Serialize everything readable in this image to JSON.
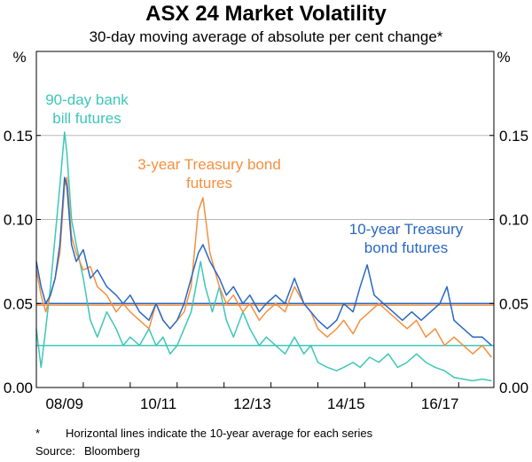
{
  "chart_data": {
    "type": "line",
    "title": "ASX 24 Market Volatility",
    "subtitle": "30-day moving average of absolute per cent change*",
    "ylabel_left": "%",
    "ylabel_right": "%",
    "ylim": [
      0,
      0.2
    ],
    "yticks": [
      "0.00",
      "0.05",
      "0.10",
      "0.15"
    ],
    "xlim": [
      2008.0,
      2017.75
    ],
    "xticks": [
      {
        "label": "08/09",
        "pos": 2008.6
      },
      {
        "label": "10/11",
        "pos": 2010.6
      },
      {
        "label": "12/13",
        "pos": 2012.6
      },
      {
        "label": "14/15",
        "pos": 2014.6
      },
      {
        "label": "16/17",
        "pos": 2016.6
      }
    ],
    "grid": true,
    "series": [
      {
        "name": "90-day bank bill futures",
        "label": [
          "90-day bank",
          "bill futures"
        ],
        "color": "#3ec6b8",
        "average": 0.025,
        "points": [
          [
            2008.0,
            0.035
          ],
          [
            2008.1,
            0.012
          ],
          [
            2008.2,
            0.035
          ],
          [
            2008.3,
            0.06
          ],
          [
            2008.4,
            0.09
          ],
          [
            2008.5,
            0.12
          ],
          [
            2008.6,
            0.152
          ],
          [
            2008.65,
            0.14
          ],
          [
            2008.75,
            0.1
          ],
          [
            2008.85,
            0.085
          ],
          [
            2009.0,
            0.065
          ],
          [
            2009.15,
            0.04
          ],
          [
            2009.3,
            0.03
          ],
          [
            2009.5,
            0.045
          ],
          [
            2009.7,
            0.035
          ],
          [
            2009.85,
            0.025
          ],
          [
            2010.0,
            0.03
          ],
          [
            2010.2,
            0.025
          ],
          [
            2010.4,
            0.035
          ],
          [
            2010.55,
            0.025
          ],
          [
            2010.7,
            0.03
          ],
          [
            2010.85,
            0.02
          ],
          [
            2011.0,
            0.025
          ],
          [
            2011.15,
            0.035
          ],
          [
            2011.3,
            0.045
          ],
          [
            2011.5,
            0.075
          ],
          [
            2011.6,
            0.06
          ],
          [
            2011.75,
            0.045
          ],
          [
            2011.9,
            0.06
          ],
          [
            2012.05,
            0.04
          ],
          [
            2012.2,
            0.03
          ],
          [
            2012.4,
            0.045
          ],
          [
            2012.55,
            0.035
          ],
          [
            2012.75,
            0.025
          ],
          [
            2012.9,
            0.03
          ],
          [
            2013.1,
            0.025
          ],
          [
            2013.3,
            0.02
          ],
          [
            2013.5,
            0.03
          ],
          [
            2013.7,
            0.02
          ],
          [
            2013.85,
            0.025
          ],
          [
            2014.0,
            0.015
          ],
          [
            2014.2,
            0.012
          ],
          [
            2014.4,
            0.01
          ],
          [
            2014.55,
            0.012
          ],
          [
            2014.75,
            0.015
          ],
          [
            2014.9,
            0.012
          ],
          [
            2015.1,
            0.018
          ],
          [
            2015.3,
            0.015
          ],
          [
            2015.5,
            0.02
          ],
          [
            2015.7,
            0.012
          ],
          [
            2015.9,
            0.015
          ],
          [
            2016.1,
            0.02
          ],
          [
            2016.3,
            0.015
          ],
          [
            2016.5,
            0.012
          ],
          [
            2016.7,
            0.01
          ],
          [
            2016.9,
            0.006
          ],
          [
            2017.1,
            0.005
          ],
          [
            2017.3,
            0.004
          ],
          [
            2017.5,
            0.005
          ],
          [
            2017.7,
            0.004
          ]
        ]
      },
      {
        "name": "3-year Treasury bond futures",
        "label": [
          "3-year Treasury bond",
          "futures"
        ],
        "color": "#f4903f",
        "average": 0.049,
        "points": [
          [
            2008.0,
            0.07
          ],
          [
            2008.1,
            0.055
          ],
          [
            2008.2,
            0.045
          ],
          [
            2008.3,
            0.055
          ],
          [
            2008.4,
            0.065
          ],
          [
            2008.5,
            0.08
          ],
          [
            2008.6,
            0.12
          ],
          [
            2008.65,
            0.125
          ],
          [
            2008.75,
            0.09
          ],
          [
            2008.85,
            0.08
          ],
          [
            2009.0,
            0.07
          ],
          [
            2009.15,
            0.072
          ],
          [
            2009.3,
            0.06
          ],
          [
            2009.5,
            0.055
          ],
          [
            2009.7,
            0.045
          ],
          [
            2009.85,
            0.05
          ],
          [
            2010.0,
            0.045
          ],
          [
            2010.2,
            0.04
          ],
          [
            2010.4,
            0.035
          ],
          [
            2010.55,
            0.05
          ],
          [
            2010.7,
            0.04
          ],
          [
            2010.85,
            0.035
          ],
          [
            2011.0,
            0.04
          ],
          [
            2011.15,
            0.045
          ],
          [
            2011.3,
            0.06
          ],
          [
            2011.45,
            0.105
          ],
          [
            2011.55,
            0.113
          ],
          [
            2011.7,
            0.08
          ],
          [
            2011.9,
            0.06
          ],
          [
            2012.05,
            0.05
          ],
          [
            2012.2,
            0.055
          ],
          [
            2012.4,
            0.045
          ],
          [
            2012.55,
            0.05
          ],
          [
            2012.75,
            0.04
          ],
          [
            2012.9,
            0.045
          ],
          [
            2013.1,
            0.05
          ],
          [
            2013.3,
            0.045
          ],
          [
            2013.5,
            0.06
          ],
          [
            2013.7,
            0.05
          ],
          [
            2013.85,
            0.045
          ],
          [
            2014.0,
            0.035
          ],
          [
            2014.2,
            0.03
          ],
          [
            2014.4,
            0.035
          ],
          [
            2014.55,
            0.04
          ],
          [
            2014.75,
            0.032
          ],
          [
            2014.9,
            0.04
          ],
          [
            2015.1,
            0.045
          ],
          [
            2015.3,
            0.05
          ],
          [
            2015.5,
            0.045
          ],
          [
            2015.7,
            0.04
          ],
          [
            2015.9,
            0.035
          ],
          [
            2016.1,
            0.04
          ],
          [
            2016.3,
            0.03
          ],
          [
            2016.5,
            0.035
          ],
          [
            2016.7,
            0.025
          ],
          [
            2016.9,
            0.03
          ],
          [
            2017.1,
            0.025
          ],
          [
            2017.3,
            0.02
          ],
          [
            2017.5,
            0.025
          ],
          [
            2017.7,
            0.018
          ]
        ]
      },
      {
        "name": "10-year Treasury bond futures",
        "label": [
          "10-year Treasury",
          "bond futures"
        ],
        "color": "#2a68c2",
        "average": 0.05,
        "points": [
          [
            2008.0,
            0.075
          ],
          [
            2008.1,
            0.06
          ],
          [
            2008.2,
            0.05
          ],
          [
            2008.3,
            0.055
          ],
          [
            2008.4,
            0.065
          ],
          [
            2008.5,
            0.085
          ],
          [
            2008.6,
            0.125
          ],
          [
            2008.65,
            0.12
          ],
          [
            2008.75,
            0.085
          ],
          [
            2008.85,
            0.075
          ],
          [
            2009.0,
            0.082
          ],
          [
            2009.15,
            0.065
          ],
          [
            2009.3,
            0.07
          ],
          [
            2009.5,
            0.06
          ],
          [
            2009.7,
            0.055
          ],
          [
            2009.85,
            0.05
          ],
          [
            2010.0,
            0.055
          ],
          [
            2010.2,
            0.045
          ],
          [
            2010.4,
            0.04
          ],
          [
            2010.55,
            0.05
          ],
          [
            2010.7,
            0.04
          ],
          [
            2010.85,
            0.035
          ],
          [
            2011.0,
            0.04
          ],
          [
            2011.15,
            0.05
          ],
          [
            2011.3,
            0.065
          ],
          [
            2011.45,
            0.08
          ],
          [
            2011.55,
            0.085
          ],
          [
            2011.7,
            0.075
          ],
          [
            2011.9,
            0.065
          ],
          [
            2012.05,
            0.055
          ],
          [
            2012.2,
            0.06
          ],
          [
            2012.4,
            0.05
          ],
          [
            2012.55,
            0.055
          ],
          [
            2012.75,
            0.045
          ],
          [
            2012.9,
            0.05
          ],
          [
            2013.1,
            0.055
          ],
          [
            2013.3,
            0.05
          ],
          [
            2013.5,
            0.065
          ],
          [
            2013.7,
            0.05
          ],
          [
            2013.85,
            0.045
          ],
          [
            2014.0,
            0.04
          ],
          [
            2014.2,
            0.035
          ],
          [
            2014.4,
            0.04
          ],
          [
            2014.55,
            0.05
          ],
          [
            2014.75,
            0.045
          ],
          [
            2014.9,
            0.06
          ],
          [
            2015.05,
            0.073
          ],
          [
            2015.2,
            0.055
          ],
          [
            2015.4,
            0.05
          ],
          [
            2015.6,
            0.045
          ],
          [
            2015.8,
            0.04
          ],
          [
            2016.0,
            0.045
          ],
          [
            2016.2,
            0.04
          ],
          [
            2016.4,
            0.045
          ],
          [
            2016.6,
            0.05
          ],
          [
            2016.75,
            0.06
          ],
          [
            2016.9,
            0.04
          ],
          [
            2017.1,
            0.035
          ],
          [
            2017.3,
            0.03
          ],
          [
            2017.5,
            0.03
          ],
          [
            2017.7,
            0.025
          ]
        ]
      }
    ],
    "footnote_marker": "*",
    "footnote": "Horizontal lines indicate the 10-year average for each series",
    "source_label": "Source:",
    "source": "Bloomberg"
  }
}
